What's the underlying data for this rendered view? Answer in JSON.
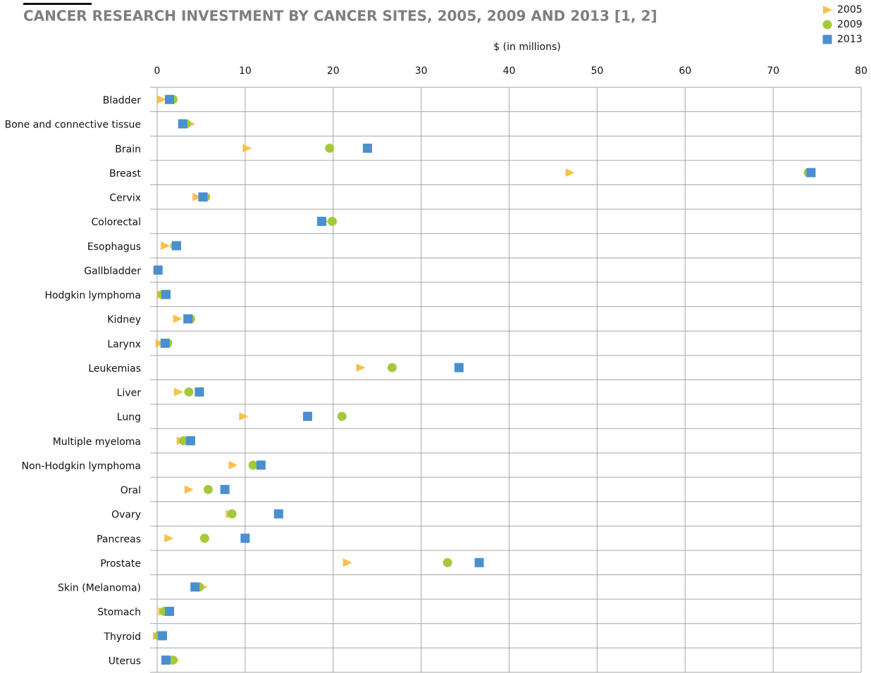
{
  "chart_data": {
    "type": "dot",
    "title": "CANCER RESEARCH INVESTMENT BY CANCER SITES, 2005, 2009 AND 2013 [1, 2]",
    "x_label": "$ (in millions)",
    "categories": [
      "Bladder",
      "Bone and connective tissue",
      "Brain",
      "Breast",
      "Cervix",
      "Colorectal",
      "Esophagus",
      "Gallbladder",
      "Hodgkin lymphoma",
      "Kidney",
      "Larynx",
      "Leukemias",
      "Liver",
      "Lung",
      "Multiple myeloma",
      "Non-Hodgkin lymphoma",
      "Oral",
      "Ovary",
      "Pancreas",
      "Prostate",
      "Skin (Melanoma)",
      "Stomach",
      "Thyroid",
      "Uterus"
    ],
    "series": [
      {
        "name": "2005",
        "color": "#f7c14a",
        "marker": "triangle",
        "values": [
          0.5,
          3.8,
          10.2,
          46.9,
          4.5,
          19.0,
          0.9,
          0.1,
          0.5,
          2.3,
          0.3,
          23.1,
          2.4,
          9.8,
          2.7,
          8.6,
          3.6,
          8.3,
          1.3,
          21.6,
          5.2,
          0.6,
          0.0,
          2.0
        ]
      },
      {
        "name": "2009",
        "color": "#a5c93a",
        "marker": "circle",
        "values": [
          1.8,
          3.3,
          19.6,
          74.0,
          5.5,
          19.9,
          2.0,
          0.1,
          0.6,
          3.8,
          1.2,
          26.7,
          3.6,
          21.0,
          3.0,
          10.9,
          5.8,
          8.5,
          5.4,
          33.0,
          4.8,
          0.8,
          0.2,
          1.8
        ]
      },
      {
        "name": "2013",
        "color": "#4a8fd0",
        "marker": "square",
        "values": [
          1.4,
          2.9,
          23.9,
          74.3,
          5.2,
          18.7,
          2.2,
          0.1,
          1.0,
          3.5,
          0.9,
          34.3,
          4.8,
          17.1,
          3.8,
          11.8,
          7.7,
          13.8,
          10.0,
          36.6,
          4.3,
          1.4,
          0.6,
          1.0
        ]
      }
    ],
    "xlim": [
      0,
      80
    ],
    "xticks": [
      0,
      10,
      20,
      30,
      40,
      50,
      60,
      70,
      80
    ],
    "grid": true,
    "legend": "top-right"
  }
}
